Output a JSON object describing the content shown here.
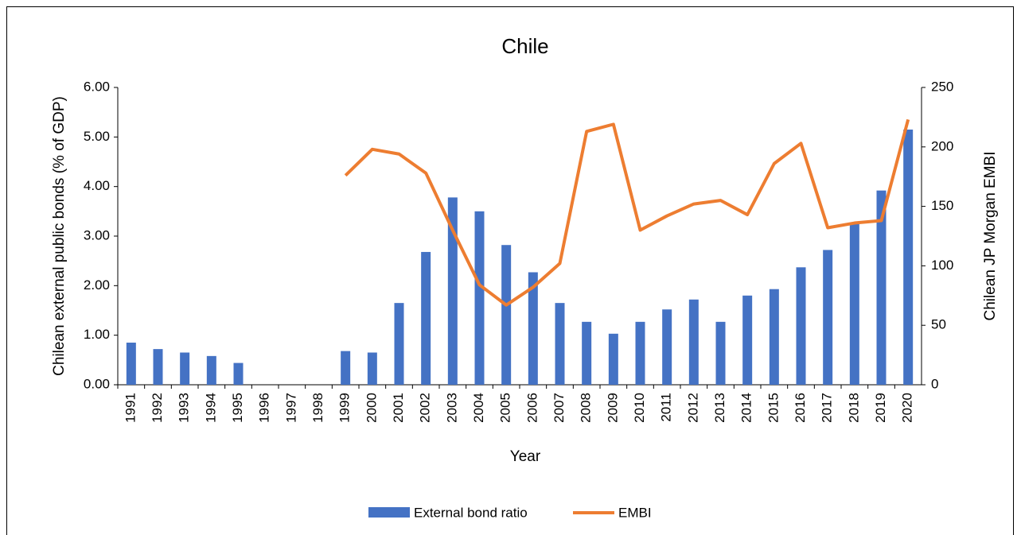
{
  "chart_data": {
    "type": "bar",
    "title": "Chile",
    "x_label": "Year",
    "y_label": "Chilean external public bonds (% of GDP)",
    "y2_label": "Chilean JP Morgan EMBI",
    "categories": [
      "1991",
      "1992",
      "1993",
      "1994",
      "1995",
      "1996",
      "1997",
      "1998",
      "1999",
      "2000",
      "2001",
      "2002",
      "2003",
      "2004",
      "2005",
      "2006",
      "2007",
      "2008",
      "2009",
      "2010",
      "2011",
      "2012",
      "2013",
      "2014",
      "2015",
      "2016",
      "2017",
      "2018",
      "2019",
      "2020"
    ],
    "series": [
      {
        "name": "External bond ratio",
        "type": "bar",
        "color": "#4472c4",
        "values": [
          0.85,
          0.72,
          0.65,
          0.58,
          0.44,
          0,
          0,
          0,
          0.68,
          0.65,
          1.65,
          2.68,
          3.78,
          3.5,
          2.82,
          2.27,
          1.65,
          1.27,
          1.03,
          1.27,
          1.52,
          1.72,
          1.27,
          1.8,
          1.93,
          2.37,
          2.72,
          3.25,
          3.92,
          5.15
        ]
      },
      {
        "name": "EMBI",
        "type": "line",
        "color": "#ed7d31",
        "axis": "y2",
        "values": [
          null,
          null,
          null,
          null,
          null,
          null,
          null,
          null,
          176,
          198,
          194,
          178,
          130,
          84,
          67,
          82,
          102,
          213,
          219,
          130,
          142,
          152,
          155,
          143,
          186,
          203,
          132,
          136,
          138,
          223
        ]
      }
    ],
    "ylim": [
      0,
      6
    ],
    "yticks": [
      {
        "value": 0,
        "label": "0.00"
      },
      {
        "value": 1,
        "label": "1.00"
      },
      {
        "value": 2,
        "label": "2.00"
      },
      {
        "value": 3,
        "label": "3.00"
      },
      {
        "value": 4,
        "label": "4.00"
      },
      {
        "value": 5,
        "label": "5.00"
      },
      {
        "value": 6,
        "label": "6.00"
      }
    ],
    "y2lim": [
      0,
      250
    ],
    "y2ticks": [
      0,
      50,
      100,
      150,
      200,
      250
    ],
    "legend": "bottom"
  }
}
